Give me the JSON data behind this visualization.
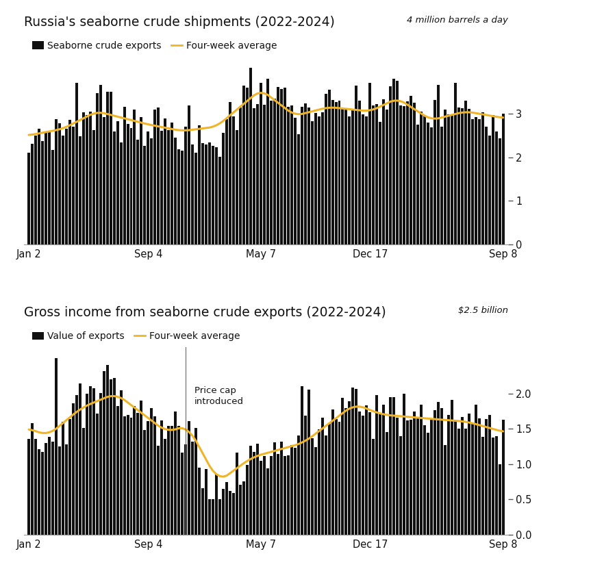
{
  "title1": "Russia's seaborne crude shipments (2022-2024)",
  "legend1_bar": "Seaborne crude exports",
  "legend1_line": "Four-week average",
  "ylabel1": "4 million barrels a day",
  "title2": "Gross income from seaborne crude exports (2022-2024)",
  "legend2_bar": "Value of exports",
  "legend2_line": "Four-week average",
  "ylabel2": "$2.5 billion",
  "annotation2": "Price cap\nintroduced",
  "xtick_labels": [
    "Jan 2",
    "Sep 4",
    "May 7",
    "Dec 17",
    "Sep 8"
  ],
  "bar_color": "#111111",
  "line_color": "#f0b429",
  "background_color": "#ffffff",
  "title_color": "#111111",
  "tick_label_color": "#111111",
  "chart1_ylim": [
    0,
    4.3
  ],
  "chart1_yticks": [
    0,
    1,
    2,
    3
  ],
  "chart2_ylim": [
    0,
    2.65
  ],
  "chart2_yticks": [
    0,
    0.5,
    1.0,
    1.5,
    2.0
  ],
  "n_bars": 140,
  "xtick_positions": [
    0,
    35,
    68,
    100,
    139
  ]
}
